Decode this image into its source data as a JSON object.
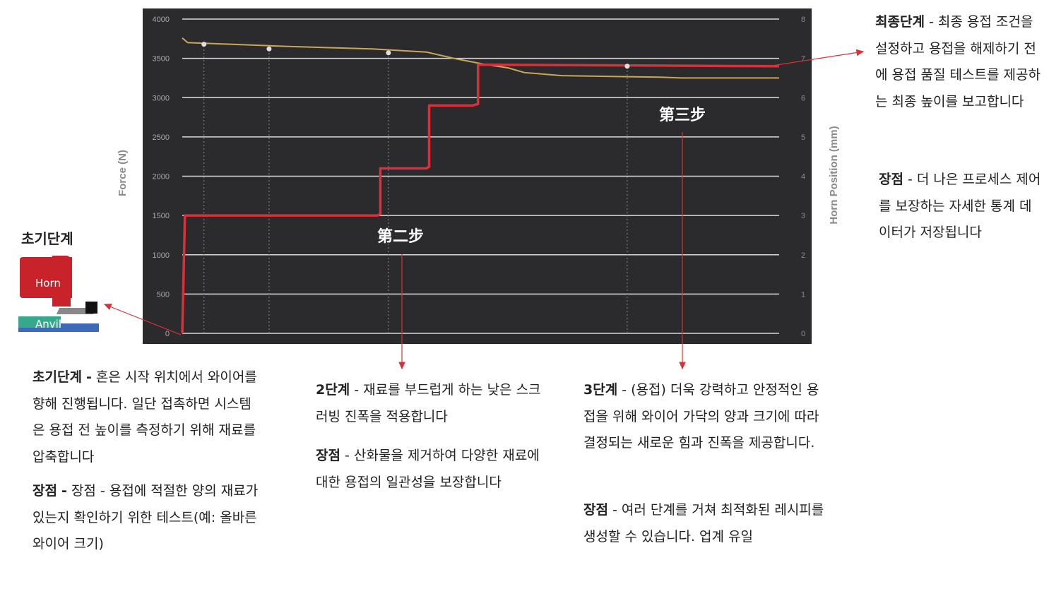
{
  "chart_data": {
    "type": "line",
    "yaxis_left": {
      "label": "Force (N)",
      "ticks": [
        "0",
        "500",
        "1000",
        "1500",
        "2000",
        "2500",
        "3000",
        "3500",
        "4000"
      ],
      "range": [
        0,
        4000
      ]
    },
    "yaxis_right": {
      "label": "Horn Position (mm)",
      "ticks": [
        "0",
        "1",
        "2",
        "3",
        "4",
        "5",
        "6",
        "7",
        "8"
      ],
      "range": [
        0,
        8
      ]
    },
    "grid": true,
    "series": [
      {
        "name": "",
        "color": "#d8313a",
        "x": [
          0,
          0.05,
          0.05,
          3.6,
          3.65,
          3.65,
          4.5,
          4.55,
          4.55,
          5.35,
          5.45,
          5.45,
          11.0
        ],
        "y": [
          0,
          1500,
          1500,
          1500,
          1520,
          2100,
          2100,
          2120,
          2900,
          2900,
          2920,
          3420,
          3400
        ]
      },
      {
        "name": "",
        "color": "#c9a75a",
        "x": [
          0,
          0.1,
          2,
          3.5,
          4.5,
          5,
          5.6,
          6,
          6.3,
          7,
          8.8,
          9.2,
          11.0
        ],
        "y": [
          3760,
          3700,
          3650,
          3620,
          3580,
          3500,
          3420,
          3380,
          3320,
          3280,
          3260,
          3250,
          3250
        ]
      }
    ],
    "markers": [
      {
        "x": 0.4,
        "y": 3680
      },
      {
        "x": 1.6,
        "y": 3620
      },
      {
        "x": 3.8,
        "y": 3570
      },
      {
        "x": 8.2,
        "y": 3400
      }
    ],
    "annotations": [
      {
        "text": "第二步"
      },
      {
        "text": "第三步"
      }
    ]
  },
  "left_heading": "초기단계",
  "horn_label": "Horn",
  "anvil_label": "Anvil",
  "blocks": {
    "init_title": "초기단계",
    "init_dash": "-",
    "init_body": "혼은 시작 위치에서 와이어를 향해 진행됩니다. 일단 접촉하면 시스템은 용접 전 높이를 측정하기 위해 재료를 압축합니다",
    "init_adv_label": "장점",
    "init_adv_dash": "-",
    "init_adv_body": "장점 - 용접에 적절한 양의 재료가 있는지 확인하기 위한 테스트(예: 올바른 와이어 크기)",
    "s2_title": "2단계",
    "s2_body": "- 재료를 부드럽게 하는 낮은 스크러빙 진폭을 적용합니다",
    "s2_adv_label": "장점",
    "s2_adv_body": "- 산화물을 제거하여 다양한 재료에 대한 용접의 일관성을 보장합니다",
    "s3_title": "3단계",
    "s3_body": "- (용접) 더욱 강력하고 안정적인 용접을 위해 와이어 가닥의 양과 크기에 따라 결정되는 새로운 힘과 진폭을 제공합니다.",
    "s3_adv_label": "장점",
    "s3_adv_body": "- 여러 단계를 거쳐 최적화된 레시피를 생성할 수 있습니다. 업계 유일",
    "final_title": "최종단계",
    "final_body": "- 최종 용접 조건을 설정하고 용접을 해제하기 전에 용접 품질 테스트를 제공하는 최종 높이를 보고합니다",
    "final_adv_label": "장점",
    "final_adv_body": "- 더 나은 프로세스 제어를 보장하는 자세한 통계 데이터가 저장됩니다"
  }
}
